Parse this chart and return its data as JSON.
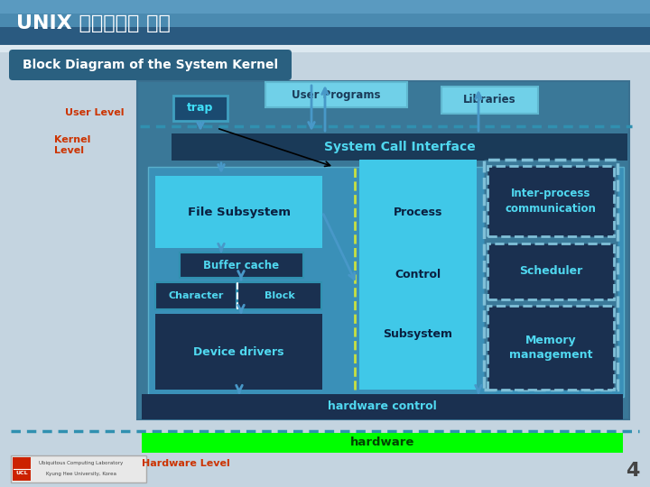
{
  "title": "UNIX 운영체제의 구조",
  "subtitle": "Block Diagram of the System Kernel",
  "user_level_label": "User Level",
  "kernel_level_label": "Kernel\nLevel",
  "hardware_level_label": "Hardware Level",
  "user_programs_label": "User Programs",
  "libraries_label": "Libraries",
  "trap_label": "trap",
  "syscall_label": "System Call Interface",
  "file_subsystem_label": "File Subsystem",
  "buffer_cache_label": "Buffer cache",
  "character_label": "Character",
  "block_label": "Block",
  "device_drivers_label": "Device drivers",
  "process_label": "Process",
  "control_label": "Control",
  "subsystem_label": "Subsystem",
  "ipc_label": "Inter-process\ncommunication",
  "scheduler_label": "Scheduler",
  "memory_label": "Memory\nmanagement",
  "hardware_control_label": "hardware control",
  "hardware_label": "hardware",
  "page_number": "4",
  "bg_top": "#b8ccd8",
  "bg_bottom": "#c8d8e4",
  "header_top": "#5a9ab8",
  "header_bottom": "#3a7090",
  "subtitle_box": "#2a6080",
  "dark_navy": "#1a3a58",
  "mid_navy": "#1e4a70",
  "cyan_fill": "#40c8e8",
  "cyan_light": "#80d8f0",
  "dark_box": "#1a3050",
  "green": "#00ff00",
  "red_label": "#cc3300",
  "white": "#ffffff",
  "arrow_blue": "#4090c0",
  "yg_line": "#b8d840"
}
